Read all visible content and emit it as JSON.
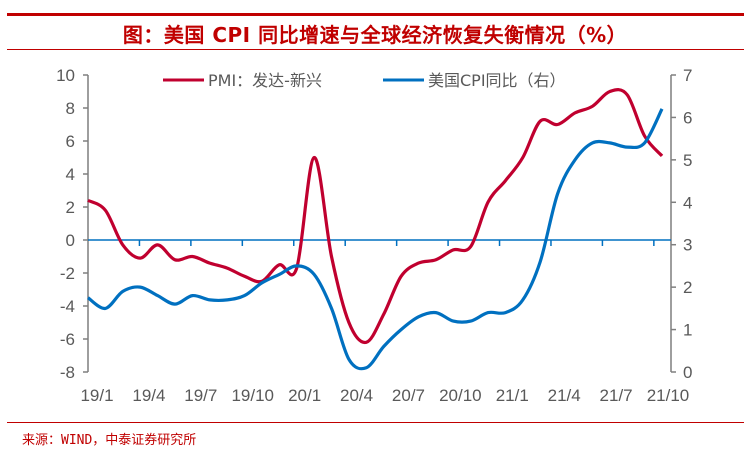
{
  "title": "图：美国 CPI 同比增速与全球经济恢复失衡情况（%）",
  "source": "来源：WIND，中泰证券研究所",
  "colors": {
    "accent": "#c00000",
    "pmi": "#c0002f",
    "cpi": "#0070c0",
    "axis": "#7f7f7f",
    "text": "#595959"
  },
  "chart_data": {
    "type": "line",
    "title": "图：美国 CPI 同比增速与全球经济恢复失衡情况（%）",
    "x": [
      "19/1",
      "19/2",
      "19/3",
      "19/4",
      "19/5",
      "19/6",
      "19/7",
      "19/8",
      "19/9",
      "19/10",
      "19/11",
      "19/12",
      "20/1",
      "20/2",
      "20/3",
      "20/4",
      "20/5",
      "20/6",
      "20/7",
      "20/8",
      "20/9",
      "20/10",
      "20/11",
      "20/12",
      "21/1",
      "21/2",
      "21/3",
      "21/4",
      "21/5",
      "21/6",
      "21/7",
      "21/8",
      "21/9",
      "21/10"
    ],
    "x_tick_labels": [
      "19/1",
      "19/4",
      "19/7",
      "19/10",
      "20/1",
      "20/4",
      "20/7",
      "20/10",
      "21/1",
      "21/4",
      "21/7",
      "21/10"
    ],
    "y_left": {
      "range": [
        -8,
        10
      ],
      "ticks": [
        "10",
        "8",
        "6",
        "4",
        "2",
        "0",
        "-2",
        "-4",
        "-6",
        "-8"
      ]
    },
    "y_right": {
      "range": [
        0,
        7
      ],
      "ticks": [
        "7",
        "6",
        "5",
        "4",
        "3",
        "2",
        "1",
        "0"
      ]
    },
    "legend_position": "top",
    "grid": false,
    "series": [
      {
        "name": "PMI：发达-新兴",
        "axis": "left",
        "color": "#c0002f",
        "values": [
          2.4,
          1.8,
          -0.3,
          -1.1,
          -0.3,
          -1.2,
          -1.0,
          -1.4,
          -1.7,
          -2.2,
          -2.5,
          -1.5,
          -1.7,
          5.0,
          -1.0,
          -5.0,
          -6.2,
          -4.5,
          -2.2,
          -1.4,
          -1.2,
          -0.6,
          -0.4,
          2.3,
          3.6,
          5.0,
          7.2,
          7.0,
          7.7,
          8.1,
          9.0,
          8.8,
          6.3,
          5.1
        ]
      },
      {
        "name": "美国CPI同比（右）",
        "axis": "right",
        "color": "#0070c0",
        "values": [
          1.75,
          1.5,
          1.9,
          2.0,
          1.8,
          1.6,
          1.8,
          1.7,
          1.7,
          1.8,
          2.1,
          2.3,
          2.5,
          2.3,
          1.5,
          0.3,
          0.1,
          0.6,
          1.0,
          1.3,
          1.4,
          1.2,
          1.2,
          1.4,
          1.4,
          1.7,
          2.6,
          4.2,
          5.0,
          5.4,
          5.4,
          5.3,
          5.4,
          6.2
        ]
      }
    ]
  }
}
